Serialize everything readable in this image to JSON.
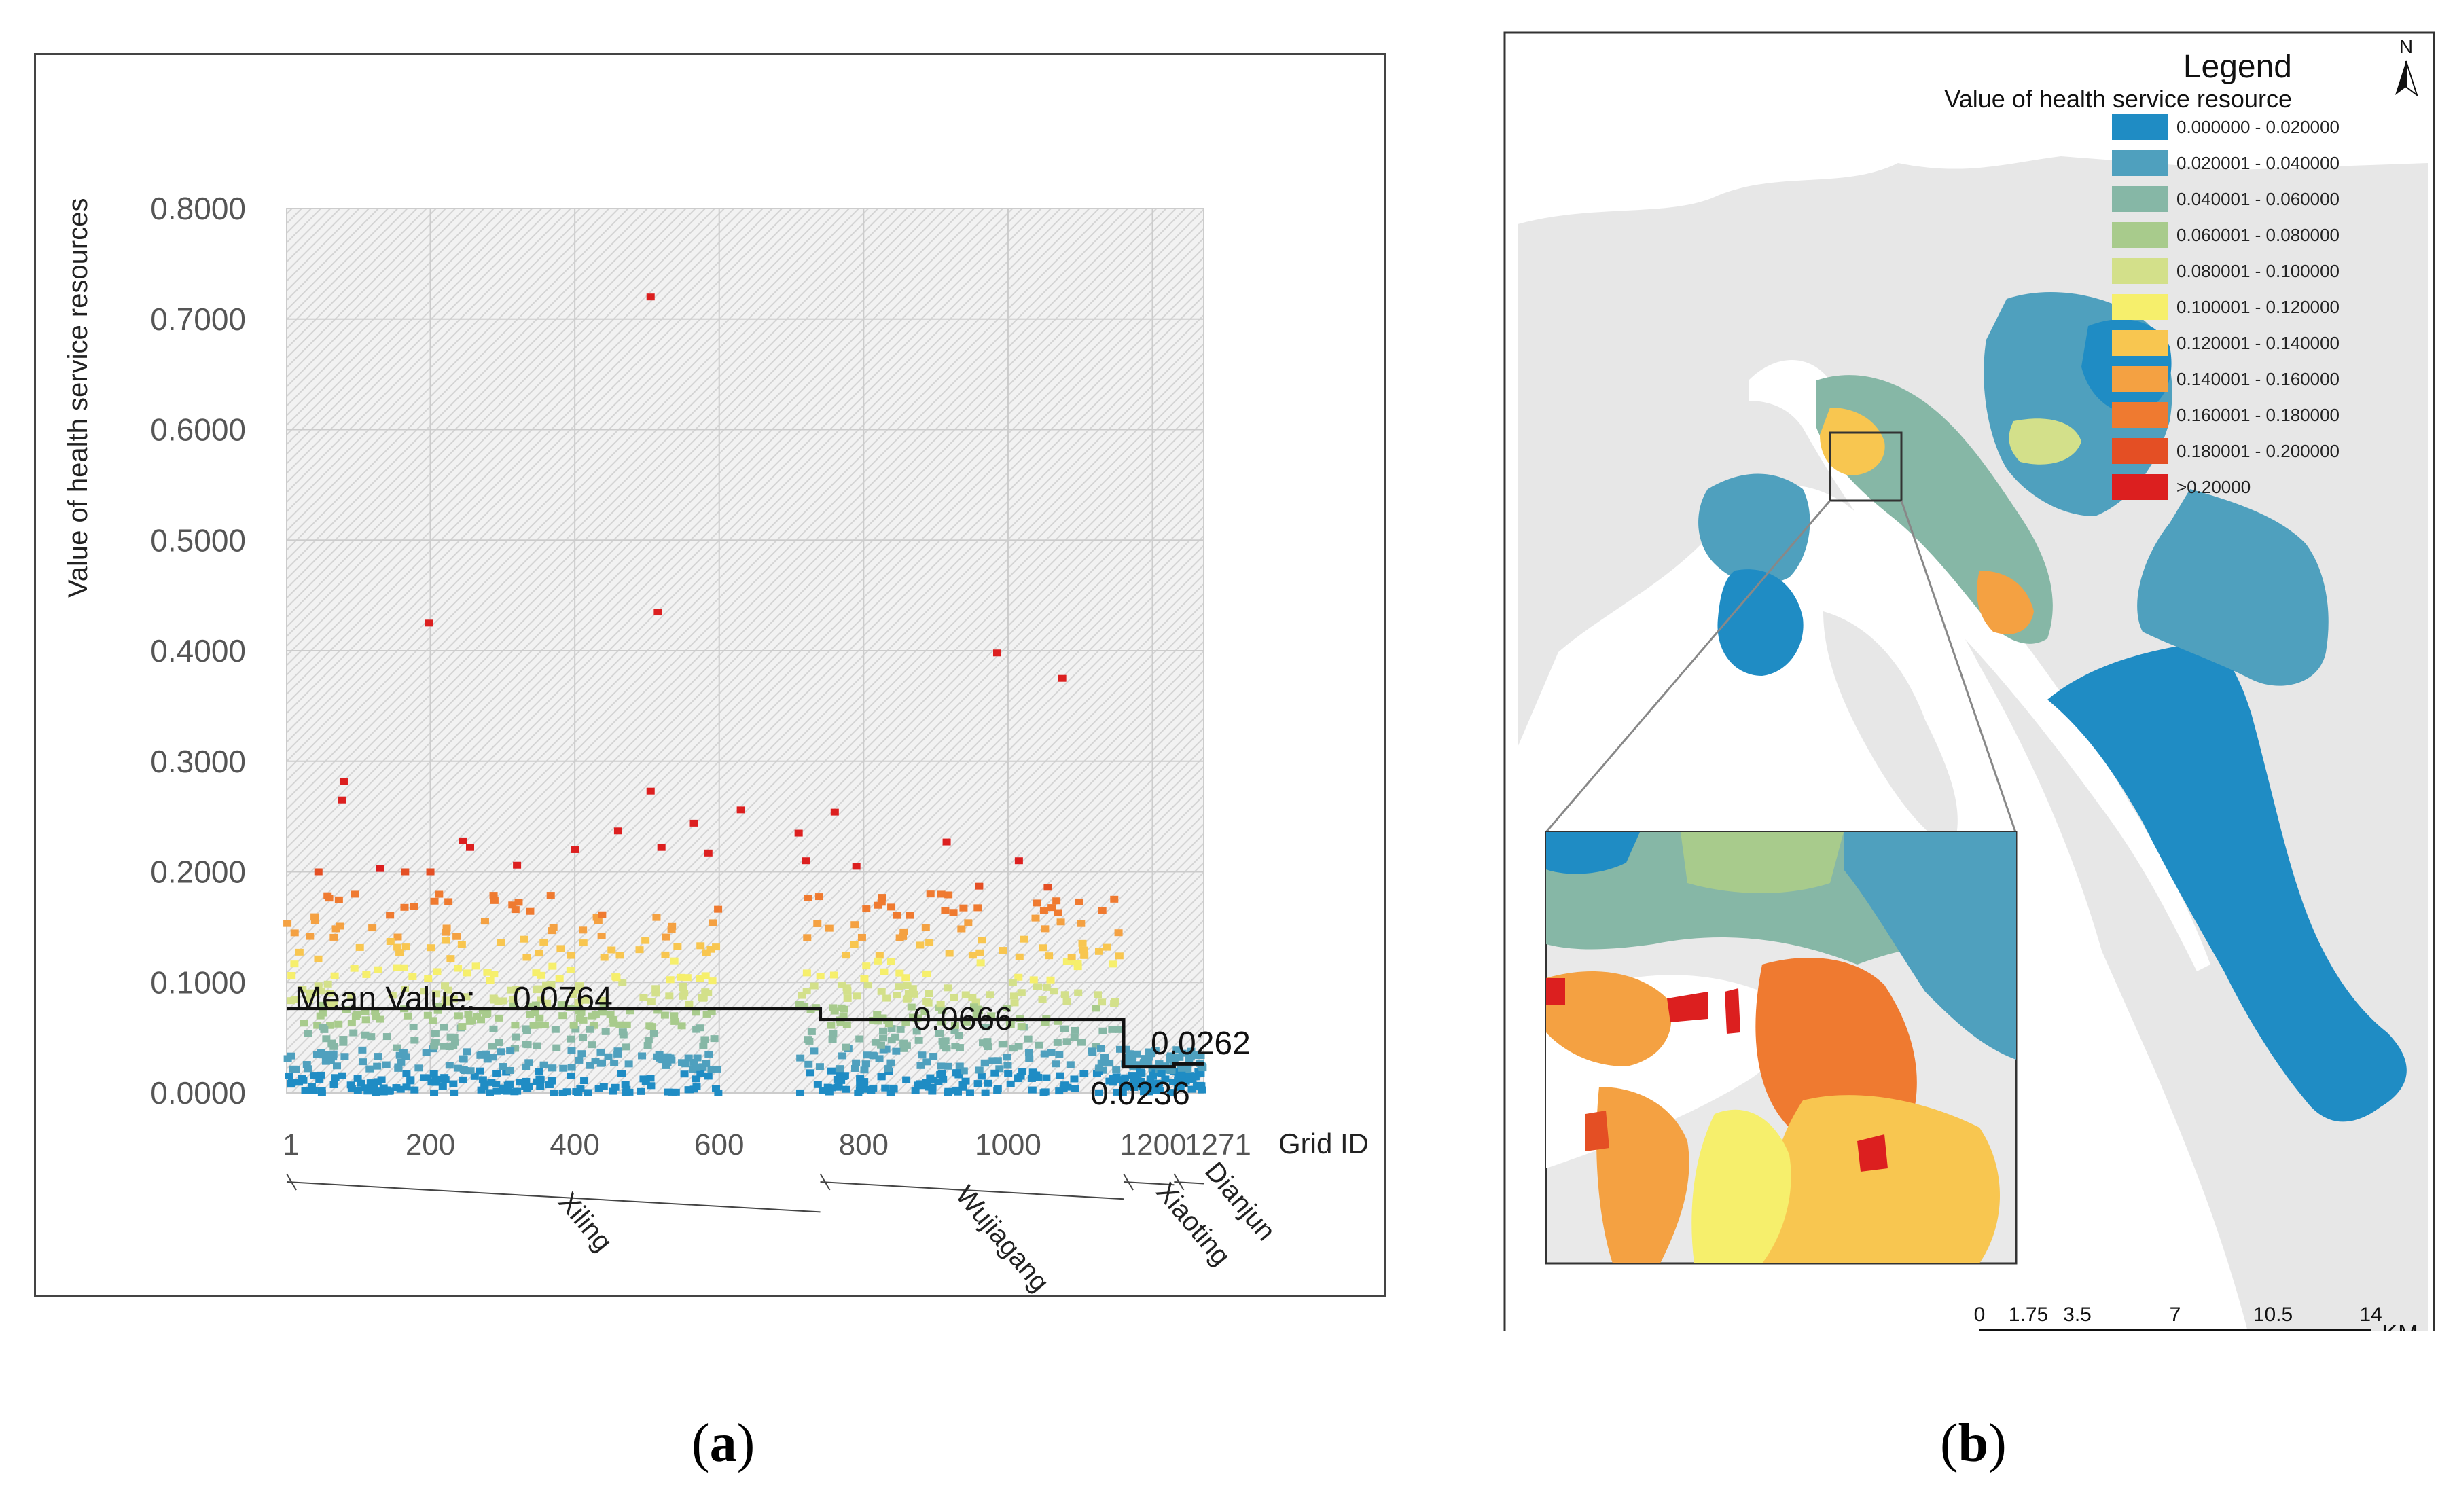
{
  "chart_data": [
    {
      "type": "scatter",
      "panel": "(a)",
      "xlabel": "Grid ID",
      "ylabel": "Value of health service resources",
      "xlim": [
        1,
        1271
      ],
      "ylim": [
        0,
        0.8
      ],
      "y_ticks": [
        "0.0000",
        "0.1000",
        "0.2000",
        "0.3000",
        "0.4000",
        "0.5000",
        "0.6000",
        "0.7000",
        "0.8000"
      ],
      "x_ticks": [
        {
          "label": "1",
          "value": 1
        },
        {
          "label": "200",
          "value": 200
        },
        {
          "label": "400",
          "value": 400
        },
        {
          "label": "600",
          "value": 600
        },
        {
          "label": "800",
          "value": 800
        },
        {
          "label": "1000",
          "value": 1000
        },
        {
          "label": "1200",
          "value": 1200
        },
        {
          "label": "1271",
          "value": 1271
        }
      ],
      "districts": [
        {
          "name": "Xiling",
          "start": 1,
          "end": 740,
          "mean": 0.0764
        },
        {
          "name": "Wujiagang",
          "start": 740,
          "end": 1160,
          "mean": 0.0666
        },
        {
          "name": "Xiaoting",
          "start": 1160,
          "end": 1230,
          "mean": 0.0236
        },
        {
          "name": "Dianjun",
          "start": 1230,
          "end": 1271,
          "mean": 0.0262
        }
      ],
      "mean_labels": [
        "Mean Value:",
        "0.0764",
        "0.0666",
        "0.0236",
        "0.0262"
      ],
      "outliers": [
        {
          "x": 505,
          "y": 0.72
        },
        {
          "x": 515,
          "y": 0.435
        },
        {
          "x": 198,
          "y": 0.425
        },
        {
          "x": 985,
          "y": 0.398
        },
        {
          "x": 1075,
          "y": 0.375
        },
        {
          "x": 80,
          "y": 0.282
        },
        {
          "x": 78,
          "y": 0.265
        },
        {
          "x": 505,
          "y": 0.273
        },
        {
          "x": 630,
          "y": 0.256
        },
        {
          "x": 760,
          "y": 0.254
        },
        {
          "x": 710,
          "y": 0.235
        },
        {
          "x": 915,
          "y": 0.227
        },
        {
          "x": 1015,
          "y": 0.21
        },
        {
          "x": 245,
          "y": 0.228
        },
        {
          "x": 255,
          "y": 0.222
        },
        {
          "x": 460,
          "y": 0.237
        },
        {
          "x": 400,
          "y": 0.22
        },
        {
          "x": 565,
          "y": 0.244
        },
        {
          "x": 520,
          "y": 0.222
        },
        {
          "x": 585,
          "y": 0.217
        },
        {
          "x": 320,
          "y": 0.206
        },
        {
          "x": 45,
          "y": 0.2
        },
        {
          "x": 130,
          "y": 0.203
        },
        {
          "x": 165,
          "y": 0.2
        },
        {
          "x": 200,
          "y": 0.2
        },
        {
          "x": 720,
          "y": 0.21
        },
        {
          "x": 790,
          "y": 0.205
        },
        {
          "x": 960,
          "y": 0.187
        },
        {
          "x": 1055,
          "y": 0.186
        }
      ],
      "color_classes": [
        {
          "max": 0.02,
          "color": "#1f8cc4"
        },
        {
          "max": 0.04,
          "color": "#4fa0be"
        },
        {
          "max": 0.06,
          "color": "#86b7a6"
        },
        {
          "max": 0.08,
          "color": "#a8cb8c"
        },
        {
          "max": 0.1,
          "color": "#d3e08a"
        },
        {
          "max": 0.12,
          "color": "#f6ef6c"
        },
        {
          "max": 0.14,
          "color": "#f8c650"
        },
        {
          "max": 0.16,
          "color": "#f4a142"
        },
        {
          "max": 0.18,
          "color": "#ef7a30"
        },
        {
          "max": 0.2,
          "color": "#e44f24"
        },
        {
          "max": 99,
          "color": "#dc1f1f"
        }
      ],
      "dense_band": {
        "min": 0.0,
        "max": 0.18,
        "note": "dense cloud of grid values, roughly uniform across x excluding 600-710"
      }
    },
    {
      "type": "map",
      "panel": "(b)",
      "legend_title": "Legend",
      "legend_subtitle": "Value of health service resource",
      "north_label": "N",
      "legend_items": [
        {
          "label": "0.000000 - 0.020000",
          "color": "#1f8cc4"
        },
        {
          "label": "0.020001 - 0.040000",
          "color": "#4fa0be"
        },
        {
          "label": "0.040001 - 0.060000",
          "color": "#86b7a6"
        },
        {
          "label": "0.060001 - 0.080000",
          "color": "#a8cb8c"
        },
        {
          "label": "0.080001 - 0.100000",
          "color": "#d3e08a"
        },
        {
          "label": "0.100001 - 0.120000",
          "color": "#f6ef6c"
        },
        {
          "label": "0.120001 - 0.140000",
          "color": "#f8c650"
        },
        {
          "label": "0.140001 - 0.160000",
          "color": "#f4a142"
        },
        {
          "label": "0.160001 - 0.180000",
          "color": "#ef7a30"
        },
        {
          "label": "0.180001 - 0.200000",
          "color": "#e44f24"
        },
        {
          "label": ">0.20000",
          "color": "#dc1f1f"
        }
      ],
      "scale_labels": [
        "0",
        "1.75",
        "3.5",
        "7",
        "10.5",
        "14"
      ],
      "scale_unit": "KM"
    }
  ],
  "captions": {
    "a": "a",
    "b": "b"
  }
}
